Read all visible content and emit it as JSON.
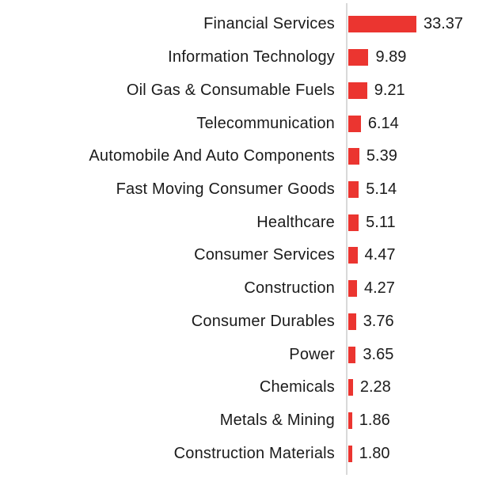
{
  "chart_data": {
    "type": "bar",
    "orientation": "horizontal",
    "title": "",
    "xlabel": "",
    "ylabel": "",
    "legend_position": "none",
    "grid": false,
    "xlim": [
      0,
      35
    ],
    "bar_color": "#eb3530",
    "axis_line_color": "#d9d9d9",
    "text_color": "#1b1b1b",
    "categories": [
      "Financial Services",
      "Information Technology",
      "Oil Gas & Consumable Fuels",
      "Telecommunication",
      "Automobile And Auto Components",
      "Fast Moving Consumer Goods",
      "Healthcare",
      "Consumer Services",
      "Construction",
      "Consumer Durables",
      "Power",
      "Chemicals",
      "Metals & Mining",
      "Construction Materials"
    ],
    "values": [
      33.37,
      9.89,
      9.21,
      6.14,
      5.39,
      5.14,
      5.11,
      4.47,
      4.27,
      3.76,
      3.65,
      2.28,
      1.86,
      1.8
    ],
    "value_labels": [
      "33.37",
      "9.89",
      "9.21",
      "6.14",
      "5.39",
      "5.14",
      "5.11",
      "4.47",
      "4.27",
      "3.76",
      "3.65",
      "2.28",
      "1.86",
      "1.80"
    ]
  }
}
